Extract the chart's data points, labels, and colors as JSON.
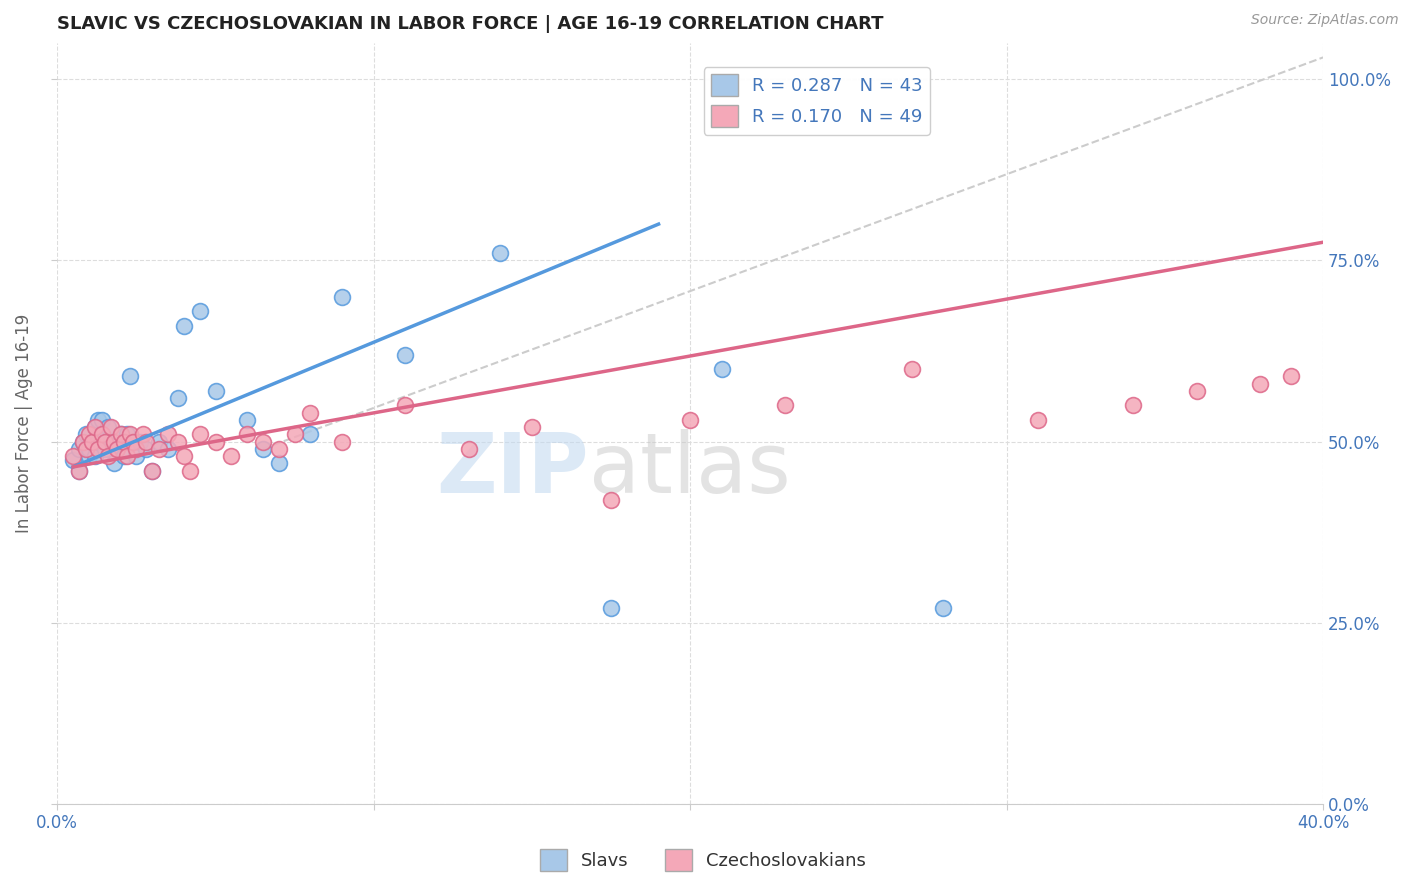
{
  "title": "SLAVIC VS CZECHOSLOVAKIAN IN LABOR FORCE | AGE 16-19 CORRELATION CHART",
  "source": "Source: ZipAtlas.com",
  "ylabel_text": "In Labor Force | Age 16-19",
  "xlim": [
    0.0,
    0.4
  ],
  "ylim": [
    0.0,
    1.05
  ],
  "yticks": [
    0.0,
    0.25,
    0.5,
    0.75,
    1.0
  ],
  "ytick_labels": [
    "0.0%",
    "25.0%",
    "50.0%",
    "75.0%",
    "100.0%"
  ],
  "xticks": [
    0.0,
    0.1,
    0.2,
    0.3,
    0.4
  ],
  "xtick_labels": [
    "0.0%",
    "",
    "",
    "",
    "40.0%"
  ],
  "slavic_R": 0.287,
  "slavic_N": 43,
  "czech_R": 0.17,
  "czech_N": 49,
  "slavic_color": "#a8c8e8",
  "czech_color": "#f4a8b8",
  "trend_slavic_color": "#5599dd",
  "trend_czech_color": "#dd6688",
  "trend_ref_color": "#cccccc",
  "background_color": "#ffffff",
  "grid_color": "#dddddd",
  "text_color": "#4477bb",
  "slavic_x": [
    0.005,
    0.007,
    0.007,
    0.008,
    0.009,
    0.01,
    0.01,
    0.011,
    0.012,
    0.012,
    0.013,
    0.013,
    0.014,
    0.015,
    0.015,
    0.016,
    0.017,
    0.018,
    0.019,
    0.02,
    0.021,
    0.022,
    0.023,
    0.025,
    0.026,
    0.028,
    0.03,
    0.032,
    0.035,
    0.038,
    0.04,
    0.045,
    0.05,
    0.06,
    0.065,
    0.07,
    0.08,
    0.09,
    0.11,
    0.14,
    0.175,
    0.21,
    0.28
  ],
  "slavic_y": [
    0.475,
    0.46,
    0.49,
    0.5,
    0.51,
    0.48,
    0.49,
    0.5,
    0.52,
    0.48,
    0.5,
    0.53,
    0.53,
    0.49,
    0.505,
    0.52,
    0.5,
    0.47,
    0.495,
    0.51,
    0.48,
    0.51,
    0.59,
    0.48,
    0.5,
    0.49,
    0.46,
    0.5,
    0.49,
    0.56,
    0.66,
    0.68,
    0.57,
    0.53,
    0.49,
    0.47,
    0.51,
    0.7,
    0.62,
    0.76,
    0.27,
    0.6,
    0.27
  ],
  "czech_x": [
    0.005,
    0.007,
    0.008,
    0.009,
    0.01,
    0.011,
    0.012,
    0.013,
    0.014,
    0.015,
    0.016,
    0.017,
    0.018,
    0.019,
    0.02,
    0.021,
    0.022,
    0.023,
    0.024,
    0.025,
    0.027,
    0.028,
    0.03,
    0.032,
    0.035,
    0.038,
    0.04,
    0.042,
    0.045,
    0.05,
    0.055,
    0.06,
    0.065,
    0.07,
    0.075,
    0.08,
    0.09,
    0.11,
    0.13,
    0.15,
    0.175,
    0.2,
    0.23,
    0.27,
    0.31,
    0.34,
    0.36,
    0.38,
    0.39
  ],
  "czech_y": [
    0.48,
    0.46,
    0.5,
    0.49,
    0.51,
    0.5,
    0.52,
    0.49,
    0.51,
    0.5,
    0.48,
    0.52,
    0.5,
    0.49,
    0.51,
    0.5,
    0.48,
    0.51,
    0.5,
    0.49,
    0.51,
    0.5,
    0.46,
    0.49,
    0.51,
    0.5,
    0.48,
    0.46,
    0.51,
    0.5,
    0.48,
    0.51,
    0.5,
    0.49,
    0.51,
    0.54,
    0.5,
    0.55,
    0.49,
    0.52,
    0.42,
    0.53,
    0.55,
    0.6,
    0.53,
    0.55,
    0.57,
    0.58,
    0.59
  ],
  "legend_labels": [
    "Slavs",
    "Czechoslovakians"
  ],
  "watermark_zip": "ZIP",
  "watermark_atlas": "atlas"
}
